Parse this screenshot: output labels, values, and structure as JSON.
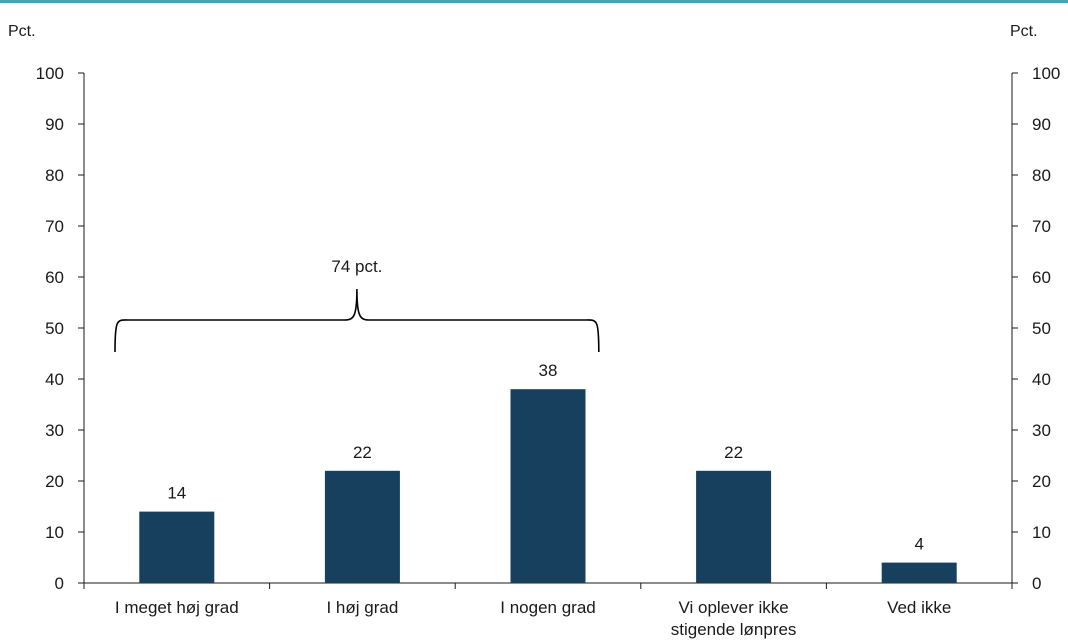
{
  "chart_data": {
    "type": "bar",
    "categories": [
      "I meget høj grad",
      "I høj grad",
      "I nogen grad",
      [
        "Vi oplever ikke",
        "stigende lønpres"
      ],
      "Ved ikke"
    ],
    "values": [
      14,
      22,
      38,
      22,
      4
    ],
    "data_labels": [
      "14",
      "22",
      "38",
      "22",
      "4"
    ],
    "ylim": [
      0,
      100
    ],
    "yticks": [
      0,
      10,
      20,
      30,
      40,
      50,
      60,
      70,
      80,
      90,
      100
    ],
    "ylabel_left": "Pct.",
    "ylabel_right": "Pct.",
    "grid": false,
    "bar_color": "#17405f",
    "top_rule_color": "#4aa3b8",
    "annotation": {
      "text": "74 pct.",
      "spans_categories": [
        0,
        2
      ]
    }
  }
}
